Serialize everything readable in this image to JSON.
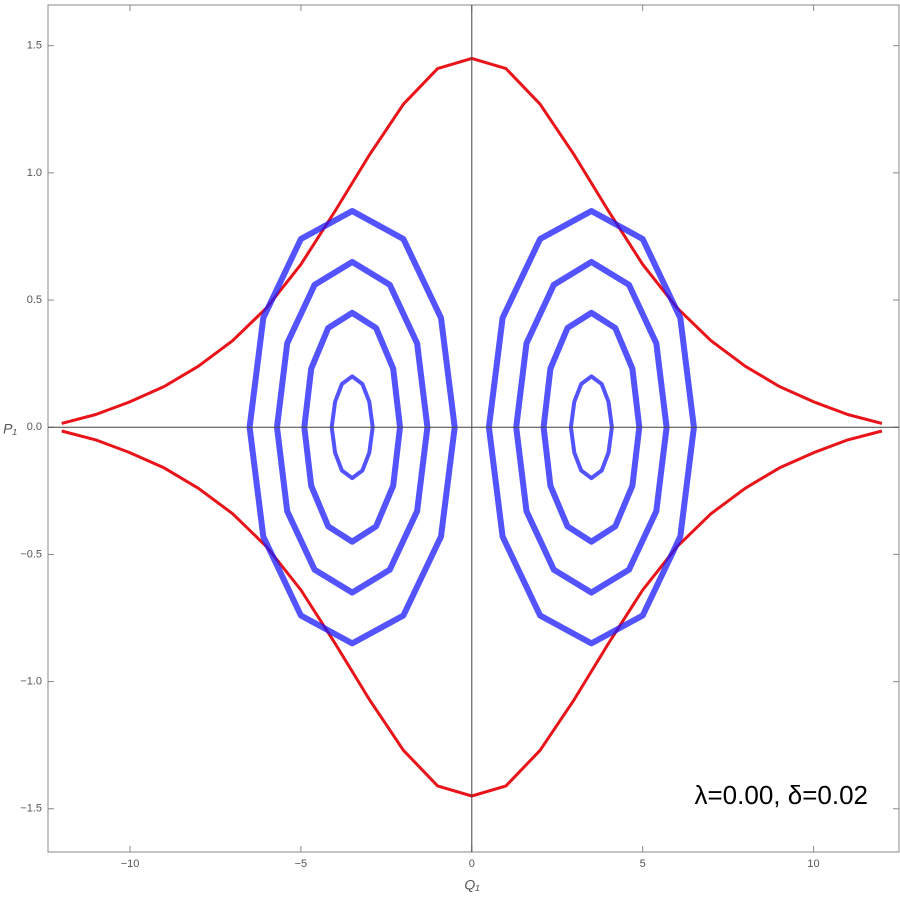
{
  "chart_data": {
    "type": "line",
    "xlabel": "Q₁",
    "ylabel": "P₁",
    "annotation": "λ=0.00, δ=0.02",
    "xlim": [
      -12.4,
      12.5
    ],
    "ylim": [
      -1.67,
      1.66
    ],
    "xticks": [
      {
        "value": -10,
        "label": "−10"
      },
      {
        "value": -5,
        "label": "−5"
      },
      0,
      5,
      10
    ],
    "yticks": [
      {
        "value": -1.5,
        "label": "−1.5"
      },
      {
        "value": -1.0,
        "label": "−1.0"
      },
      {
        "value": -0.5,
        "label": "−0.5"
      },
      {
        "value": 0,
        "label": "0.0"
      },
      0.5,
      {
        "value": 1.0,
        "label": "1.0"
      },
      1.5
    ],
    "series": [
      {
        "color": "#e8141a",
        "width": 3,
        "x": [
          -12,
          -11,
          -10,
          -9,
          -8,
          -7,
          -6,
          -5,
          -4,
          -3,
          -2,
          -1,
          0,
          1,
          2,
          3,
          4,
          5,
          6,
          7,
          8,
          9,
          10,
          11,
          12
        ],
        "values": [
          0.015,
          0.05,
          0.1,
          0.16,
          0.24,
          0.34,
          0.47,
          0.64,
          0.85,
          1.07,
          1.27,
          1.41,
          1.45,
          1.41,
          1.27,
          1.07,
          0.85,
          0.64,
          0.47,
          0.34,
          0.24,
          0.16,
          0.1,
          0.05,
          0.015
        ]
      },
      {
        "color": "#e8141a",
        "width": 3,
        "x": [
          -12,
          -11,
          -10,
          -9,
          -8,
          -7,
          -6,
          -5,
          -4,
          -3,
          -2,
          -1,
          0,
          1,
          2,
          3,
          4,
          5,
          6,
          7,
          8,
          9,
          10,
          11,
          12
        ],
        "values": [
          -0.015,
          -0.05,
          -0.1,
          -0.16,
          -0.24,
          -0.34,
          -0.47,
          -0.64,
          -0.85,
          -1.07,
          -1.27,
          -1.41,
          -1.45,
          -1.41,
          -1.27,
          -1.07,
          -0.85,
          -0.64,
          -0.47,
          -0.34,
          -0.24,
          -0.16,
          -0.1,
          -0.05,
          -0.015
        ]
      },
      {
        "color": "#1a1aff",
        "width": 6,
        "x": [
          6.5,
          6.1,
          5.0,
          3.5,
          2.0,
          0.9,
          0.5,
          0.9,
          2.0,
          3.5,
          5.0,
          6.1,
          6.5
        ],
        "values": [
          0,
          0.43,
          0.74,
          0.85,
          0.74,
          0.43,
          0,
          -0.43,
          -0.74,
          -0.85,
          -0.74,
          -0.43,
          0
        ]
      },
      {
        "color": "#1a1aff",
        "width": 6,
        "x": [
          5.7,
          5.4,
          4.6,
          3.5,
          2.4,
          1.6,
          1.3,
          1.6,
          2.4,
          3.5,
          4.6,
          5.4,
          5.7
        ],
        "values": [
          0,
          0.33,
          0.56,
          0.65,
          0.56,
          0.33,
          0,
          -0.33,
          -0.56,
          -0.65,
          -0.56,
          -0.33,
          0
        ]
      },
      {
        "color": "#1a1aff",
        "width": 6,
        "x": [
          4.9,
          4.7,
          4.2,
          3.5,
          2.8,
          2.3,
          2.1,
          2.3,
          2.8,
          3.5,
          4.2,
          4.7,
          4.9
        ],
        "values": [
          0,
          0.23,
          0.39,
          0.45,
          0.39,
          0.23,
          0,
          -0.23,
          -0.39,
          -0.45,
          -0.39,
          -0.23,
          0
        ]
      },
      {
        "color": "#1a1aff",
        "width": 4,
        "x": [
          4.1,
          4.0,
          3.8,
          3.5,
          3.2,
          3.0,
          2.9,
          3.0,
          3.2,
          3.5,
          3.8,
          4.0,
          4.1
        ],
        "values": [
          0,
          0.1,
          0.17,
          0.2,
          0.17,
          0.1,
          0,
          -0.1,
          -0.17,
          -0.2,
          -0.17,
          -0.1,
          0
        ]
      },
      {
        "color": "#1a1aff",
        "width": 6,
        "x": [
          -6.5,
          -6.1,
          -5.0,
          -3.5,
          -2.0,
          -0.9,
          -0.5,
          -0.9,
          -2.0,
          -3.5,
          -5.0,
          -6.1,
          -6.5
        ],
        "values": [
          0,
          0.43,
          0.74,
          0.85,
          0.74,
          0.43,
          0,
          -0.43,
          -0.74,
          -0.85,
          -0.74,
          -0.43,
          0
        ]
      },
      {
        "color": "#1a1aff",
        "width": 6,
        "x": [
          -5.7,
          -5.4,
          -4.6,
          -3.5,
          -2.4,
          -1.6,
          -1.3,
          -1.6,
          -2.4,
          -3.5,
          -4.6,
          -5.4,
          -5.7
        ],
        "values": [
          0,
          0.33,
          0.56,
          0.65,
          0.56,
          0.33,
          0,
          -0.33,
          -0.56,
          -0.65,
          -0.56,
          -0.33,
          0
        ]
      },
      {
        "color": "#1a1aff",
        "width": 6,
        "x": [
          -4.9,
          -4.7,
          -4.2,
          -3.5,
          -2.8,
          -2.3,
          -2.1,
          -2.3,
          -2.8,
          -3.5,
          -4.2,
          -4.7,
          -4.9
        ],
        "values": [
          0,
          0.23,
          0.39,
          0.45,
          0.39,
          0.23,
          0,
          -0.23,
          -0.39,
          -0.45,
          -0.39,
          -0.23,
          0
        ]
      },
      {
        "color": "#1a1aff",
        "width": 4,
        "x": [
          -4.1,
          -4.0,
          -3.8,
          -3.5,
          -3.2,
          -3.0,
          -2.9,
          -3.0,
          -3.2,
          -3.5,
          -3.8,
          -4.0,
          -4.1
        ],
        "values": [
          0,
          0.1,
          0.17,
          0.2,
          0.17,
          0.1,
          0,
          -0.1,
          -0.17,
          -0.2,
          -0.17,
          -0.1,
          0
        ]
      }
    ]
  }
}
